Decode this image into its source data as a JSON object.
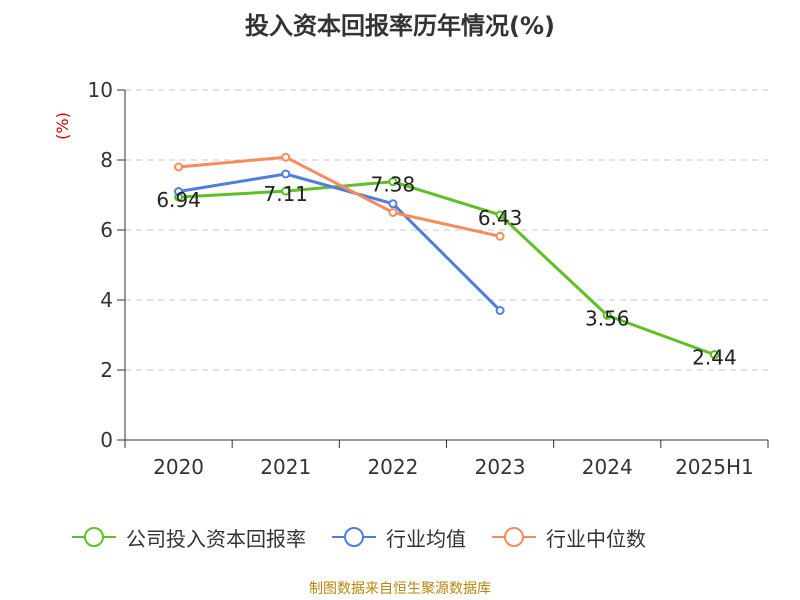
{
  "chart_data": {
    "type": "line",
    "title": "投入资本回报率历年情况(%)",
    "ylabel": "(%)",
    "xlabel": "",
    "categories": [
      "2020",
      "2021",
      "2022",
      "2023",
      "2024",
      "2025H1"
    ],
    "ylim": [
      0,
      10
    ],
    "yticks": [
      0,
      2,
      4,
      6,
      8,
      10
    ],
    "grid": true,
    "legend_position": "bottom",
    "series": [
      {
        "name": "公司投入资本回报率",
        "color": "#5dc126",
        "values": [
          6.94,
          7.11,
          7.38,
          6.43,
          3.56,
          2.44
        ],
        "show_labels": true
      },
      {
        "name": "行业均值",
        "color": "#4f7fdb",
        "values": [
          7.1,
          7.6,
          6.75,
          3.7,
          null,
          null
        ],
        "show_labels": false
      },
      {
        "name": "行业中位数",
        "color": "#f58c5a",
        "values": [
          7.8,
          8.08,
          6.5,
          5.82,
          null,
          null
        ],
        "show_labels": false
      }
    ]
  },
  "source_note": "制图数据来自恒生聚源数据库"
}
